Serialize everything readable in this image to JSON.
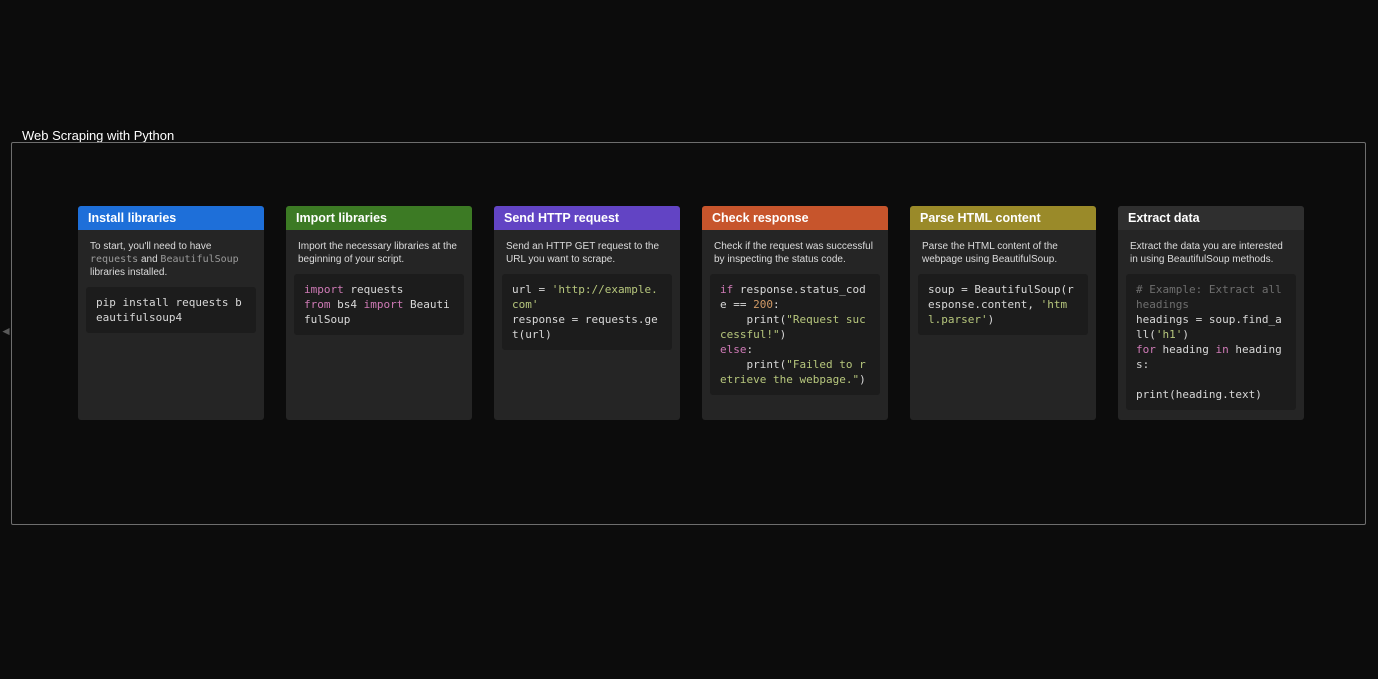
{
  "page_title": "Web Scraping with Python",
  "colors": {
    "page_bg": "#0c0c0c",
    "frame_border": "#6e6e6e",
    "card_bg": "#252525",
    "code_bg": "#1c1c1c",
    "text_white": "#ffffff",
    "text_desc": "#dcdcdc",
    "inline_code": "#9b9b9b",
    "syntax_keyword": "#cf7ab6",
    "syntax_string": "#b7c77d",
    "syntax_number": "#d19a66",
    "syntax_comment": "#6e6e6e",
    "syntax_plain": "#d8d8d8"
  },
  "cards": [
    {
      "title": "Install libraries",
      "header_color": "#1e6fd9",
      "desc_segments": [
        {
          "t": "text",
          "v": "To start, you'll need to have "
        },
        {
          "t": "code",
          "v": "requests"
        },
        {
          "t": "text",
          "v": " and "
        },
        {
          "t": "code",
          "v": "BeautifulSoup"
        },
        {
          "t": "text",
          "v": " libraries installed."
        }
      ],
      "code_tokens": [
        {
          "c": "pln",
          "v": "pip install requests beautifulsoup4"
        }
      ]
    },
    {
      "title": "Import libraries",
      "header_color": "#3c7a24",
      "desc_segments": [
        {
          "t": "text",
          "v": "Import the necessary libraries at the beginning of your script."
        }
      ],
      "code_tokens": [
        {
          "c": "kw",
          "v": "import"
        },
        {
          "c": "pln",
          "v": " requests\n"
        },
        {
          "c": "kw",
          "v": "from"
        },
        {
          "c": "pln",
          "v": " bs4 "
        },
        {
          "c": "kw",
          "v": "import"
        },
        {
          "c": "pln",
          "v": " BeautifulSoup"
        }
      ]
    },
    {
      "title": "Send HTTP request",
      "header_color": "#6244c4",
      "desc_segments": [
        {
          "t": "text",
          "v": "Send an HTTP GET request to the URL you want to scrape."
        }
      ],
      "code_tokens": [
        {
          "c": "pln",
          "v": "url = "
        },
        {
          "c": "str",
          "v": "'http://example.com'"
        },
        {
          "c": "pln",
          "v": "\nresponse = requests.get(url)"
        }
      ]
    },
    {
      "title": "Check response",
      "header_color": "#c7552c",
      "desc_segments": [
        {
          "t": "text",
          "v": "Check if the request was successful by inspecting the status code."
        }
      ],
      "code_tokens": [
        {
          "c": "kw",
          "v": "if"
        },
        {
          "c": "pln",
          "v": " response.status_code == "
        },
        {
          "c": "num",
          "v": "200"
        },
        {
          "c": "pln",
          "v": ":\n    print("
        },
        {
          "c": "str",
          "v": "\"Request successful!\""
        },
        {
          "c": "pln",
          "v": ")\n"
        },
        {
          "c": "kw",
          "v": "else"
        },
        {
          "c": "pln",
          "v": ":\n    print("
        },
        {
          "c": "str",
          "v": "\"Failed to retrieve the webpage.\""
        },
        {
          "c": "pln",
          "v": ")"
        }
      ]
    },
    {
      "title": "Parse HTML content",
      "header_color": "#9a8a29",
      "desc_segments": [
        {
          "t": "text",
          "v": "Parse the HTML content of the webpage using BeautifulSoup."
        }
      ],
      "code_tokens": [
        {
          "c": "pln",
          "v": "soup = BeautifulSoup(response.content, "
        },
        {
          "c": "str",
          "v": "'html.parser'"
        },
        {
          "c": "pln",
          "v": ")"
        }
      ]
    },
    {
      "title": "Extract data",
      "header_color": "#2f2f2f",
      "desc_segments": [
        {
          "t": "text",
          "v": "Extract the data you are interested in using BeautifulSoup methods."
        }
      ],
      "code_tokens": [
        {
          "c": "cmt",
          "v": "# Example: Extract all headings"
        },
        {
          "c": "pln",
          "v": "\nheadings = soup.find_all("
        },
        {
          "c": "str",
          "v": "'h1'"
        },
        {
          "c": "pln",
          "v": ")\n"
        },
        {
          "c": "kw",
          "v": "for"
        },
        {
          "c": "pln",
          "v": " heading "
        },
        {
          "c": "kw",
          "v": "in"
        },
        {
          "c": "pln",
          "v": " headings:\n\nprint(heading.text)"
        }
      ]
    }
  ]
}
